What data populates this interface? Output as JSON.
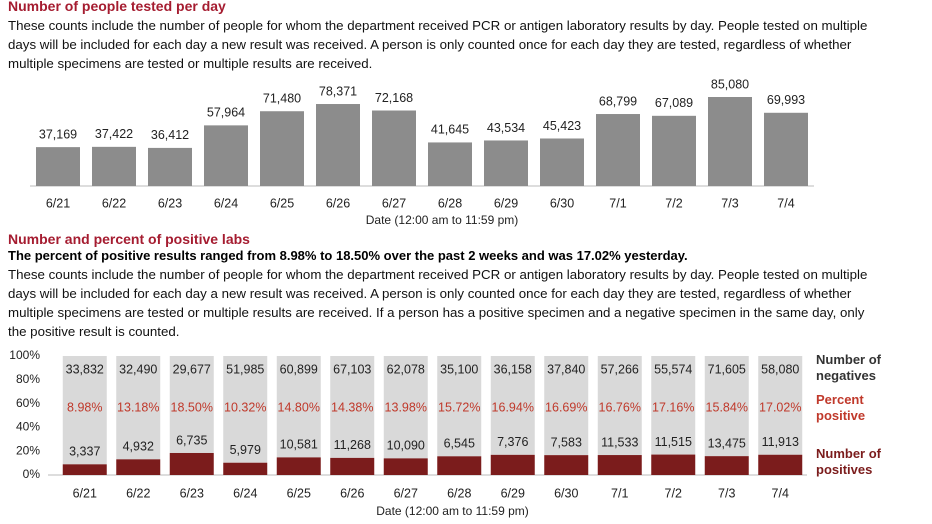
{
  "chart_data": [
    {
      "type": "bar",
      "title": "Number of people tested per day",
      "description": "These counts include the number of people for whom the department received PCR or antigen laboratory results by day. People tested on multiple days will be included for each day a new result was received. A person is only counted once for each day they are tested, regardless of whether multiple specimens are tested or multiple results are received.",
      "xlabel": "Date (12:00 am to 11:59 pm)",
      "categories": [
        "6/21",
        "6/22",
        "6/23",
        "6/24",
        "6/25",
        "6/26",
        "6/27",
        "6/28",
        "6/29",
        "6/30",
        "7/1",
        "7/2",
        "7/3",
        "7/4"
      ],
      "values": [
        37169,
        37422,
        36412,
        57964,
        71480,
        78371,
        72168,
        41645,
        43534,
        45423,
        68799,
        67089,
        85080,
        69993
      ],
      "value_labels": [
        "37,169",
        "37,422",
        "36,412",
        "57,964",
        "71,480",
        "78,371",
        "72,168",
        "41,645",
        "43,534",
        "45,423",
        "68,799",
        "67,089",
        "85,080",
        "69,993"
      ],
      "color": "#8c8c8c"
    },
    {
      "type": "stacked_percent_bar",
      "title": "Number and percent of positive labs",
      "subtitle": "The percent of positive results ranged from 8.98% to 18.50% over the past 2 weeks and was 17.02% yesterday.",
      "description": "These counts include the number of people for whom the department received PCR or antigen laboratory results by day. People tested on multiple days will be included for each day a new result was received. A person is only counted once for each day they are tested, regardless of whether multiple specimens are tested or multiple results are received. If a person has a positive specimen and a negative specimen in the same day, only the positive result is counted.",
      "xlabel": "Date (12:00 am to 11:59 pm)",
      "categories": [
        "6/21",
        "6/22",
        "6/23",
        "6/24",
        "6/25",
        "6/26",
        "6/27",
        "6/28",
        "6/29",
        "6/30",
        "7/1",
        "7/2",
        "7/3",
        "7/4"
      ],
      "ylim": [
        0,
        100
      ],
      "yticks": [
        {
          "value": 0,
          "label": "0%"
        },
        {
          "value": 20,
          "label": "20%"
        },
        {
          "value": 40,
          "label": "40%"
        },
        {
          "value": 60,
          "label": "60%"
        },
        {
          "value": 80,
          "label": "80%"
        },
        {
          "value": 100,
          "label": "100%"
        }
      ],
      "series": [
        {
          "name": "Number of positives",
          "color": "#7b1c1c",
          "values": [
            3337,
            4932,
            6735,
            5979,
            10581,
            11268,
            10090,
            6545,
            7376,
            7583,
            11533,
            11515,
            13475,
            11913
          ],
          "value_labels": [
            "3,337",
            "4,932",
            "6,735",
            "5,979",
            "10,581",
            "11,268",
            "10,090",
            "6,545",
            "7,376",
            "7,583",
            "11,533",
            "11,515",
            "13,475",
            "11,913"
          ]
        },
        {
          "name": "Number of negatives",
          "color": "#d9d9d9",
          "values": [
            33832,
            32490,
            29677,
            51985,
            60899,
            67103,
            62078,
            35100,
            36158,
            37840,
            57266,
            55574,
            71605,
            58080
          ],
          "value_labels": [
            "33,832",
            "32,490",
            "29,677",
            "51,985",
            "60,899",
            "67,103",
            "62,078",
            "35,100",
            "36,158",
            "37,840",
            "57,266",
            "55,574",
            "71,605",
            "58,080"
          ]
        }
      ],
      "percent_positive": {
        "name": "Percent positive",
        "color": "#c0392b",
        "values": [
          8.98,
          13.18,
          18.5,
          10.32,
          14.8,
          14.38,
          13.98,
          15.72,
          16.94,
          16.69,
          16.76,
          17.16,
          15.84,
          17.02
        ],
        "value_labels": [
          "8.98%",
          "13.18%",
          "18.50%",
          "10.32%",
          "14.80%",
          "14.38%",
          "13.98%",
          "15.72%",
          "16.94%",
          "16.69%",
          "16.76%",
          "17.16%",
          "15.84%",
          "17.02%"
        ]
      }
    }
  ]
}
